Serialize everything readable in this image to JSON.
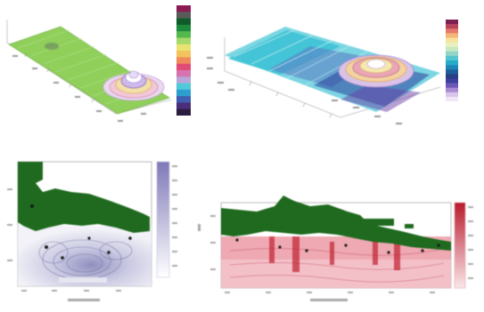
{
  "colors": {
    "land": "#1f6a1f",
    "sea_blue_light": "#e7e8f3",
    "sea_blue_mid": "#b7b9d8",
    "sea_red_light": "#f7d0d6",
    "sea_red_mid": "#e38a96",
    "sea_red_dark": "#b81b2b",
    "surface_green": "#8fcf5a",
    "surface_cyan": "#32c6d8",
    "surface_purple": "#7b3ba8"
  },
  "chart_data": [
    {
      "id": "panel-a",
      "type": "surface3d",
      "axis_labels": {
        "x": "",
        "y": "",
        "z": ""
      },
      "colorbar_swatches": [
        "#2a1d3f",
        "#4a2e7a",
        "#3f5fb0",
        "#2c9fd0",
        "#50c9d8",
        "#b8a7d8",
        "#d773b0",
        "#e04c77",
        "#f08a5c",
        "#f4c25f",
        "#e9e471",
        "#a5d96a",
        "#53b84d",
        "#1c8a3a",
        "#0f5b2a",
        "#5a5a5a",
        "#8c1a55"
      ],
      "colorbar_ticks": []
    },
    {
      "id": "panel-b",
      "type": "surface3d",
      "axis_labels": {
        "x": "",
        "y": "",
        "z": ""
      },
      "colorbar_swatches": [
        "#f0e6f6",
        "#d7c5ea",
        "#a88bd4",
        "#6d58b8",
        "#3e3f9c",
        "#293f84",
        "#1c5f9c",
        "#1f86b8",
        "#26abc9",
        "#52c5cf",
        "#8fd6c8",
        "#c8e8c0",
        "#e9f0bd",
        "#f6e39c",
        "#f2b67a",
        "#e4786a",
        "#b8445c",
        "#7c2050"
      ],
      "colorbar_ticks": []
    },
    {
      "id": "panel-c",
      "type": "contour_map",
      "title": "",
      "xlabel": "",
      "ylabel": "",
      "colormap": "purples",
      "inset_text": ""
    },
    {
      "id": "panel-d",
      "type": "contour_map",
      "title": "",
      "xlabel": "",
      "ylabel": "",
      "colormap": "reds"
    }
  ]
}
